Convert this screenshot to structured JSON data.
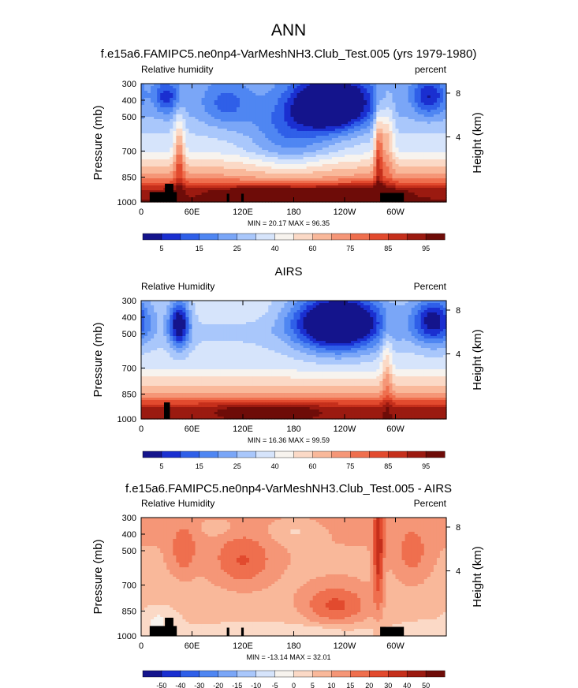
{
  "figure": {
    "main_title": "ANN"
  },
  "palettes": {
    "field": [
      "#14148c",
      "#1a2fd0",
      "#2f5fe8",
      "#4f86f2",
      "#7aa6f7",
      "#a9c7fb",
      "#d6e4fb",
      "#f7f3ee",
      "#fbd9c6",
      "#f9b89a",
      "#f59677",
      "#ef6f4e",
      "#e24a2e",
      "#c52f1b",
      "#9b1a10",
      "#6e0c08"
    ],
    "diff": [
      "#14148c",
      "#1a2fd0",
      "#2f5fe8",
      "#4f86f2",
      "#7aa6f7",
      "#a9c7fb",
      "#d6e4fb",
      "#f7f3ee",
      "#fbd9c6",
      "#f9b89a",
      "#f59677",
      "#ef6f4e",
      "#e24a2e",
      "#c52f1b",
      "#9b1a10",
      "#6e0c08"
    ],
    "land": "#000000"
  },
  "chart_data": [
    {
      "type": "heatmap",
      "title": "f.e15a6.FAMIPC5.ne0np4-VarMeshNH3.Club_Test.005 (yrs 1979-1980)",
      "left_label": "Relative humidity",
      "right_label": "percent",
      "ylabel": "Pressure (mb)",
      "ylabel_right": "Height (km)",
      "x_ticks": [
        "0",
        "60E",
        "120E",
        "180",
        "120W",
        "60W"
      ],
      "y_ticks": [
        "300",
        "400",
        "500",
        "700",
        "850",
        "1000"
      ],
      "y_ticks_right": [
        "8",
        "4"
      ],
      "xlim_lon": [
        0,
        360
      ],
      "ylim_mb": [
        1000,
        300
      ],
      "stats": "MIN =  20.17  MAX =  96.35",
      "colorbar_labels": [
        "5",
        "15",
        "25",
        "40",
        "60",
        "75",
        "85",
        "95"
      ],
      "field": {
        "base": 0.35,
        "profile": [
          [
            300,
            -0.05
          ],
          [
            500,
            -0.02
          ],
          [
            700,
            0.08
          ],
          [
            850,
            0.3
          ],
          [
            930,
            0.55
          ],
          [
            1000,
            0.6
          ]
        ],
        "blobs": [
          {
            "lon": 225,
            "p": 420,
            "slon": 45,
            "sp": 150,
            "amp": -0.55
          },
          {
            "lon": 30,
            "p": 380,
            "slon": 15,
            "sp": 100,
            "amp": -0.22
          },
          {
            "lon": 340,
            "p": 380,
            "slon": 20,
            "sp": 110,
            "amp": -0.25
          },
          {
            "lon": 100,
            "p": 420,
            "slon": 30,
            "sp": 130,
            "amp": -0.15
          },
          {
            "lon": 175,
            "p": 620,
            "slon": 50,
            "sp": 200,
            "amp": -0.18
          },
          {
            "lon": 45,
            "p": 720,
            "slon": 6,
            "sp": 220,
            "amp": 0.25
          },
          {
            "lon": 280,
            "p": 700,
            "slon": 5,
            "sp": 260,
            "amp": 0.3
          },
          {
            "lon": 290,
            "p": 620,
            "slon": 8,
            "sp": 250,
            "amp": 0.2
          },
          {
            "lon": 150,
            "p": 940,
            "slon": 60,
            "sp": 40,
            "amp": 0.15
          },
          {
            "lon": 255,
            "p": 940,
            "slon": 50,
            "sp": 40,
            "amp": 0.15
          }
        ]
      },
      "land": [
        {
          "lon0": 10,
          "lon1": 42,
          "p0": 940,
          "p1": 1000
        },
        {
          "lon0": 28,
          "lon1": 38,
          "p0": 890,
          "p1": 1000
        },
        {
          "lon0": 101,
          "lon1": 104,
          "p0": 950,
          "p1": 1000
        },
        {
          "lon0": 118,
          "lon1": 121,
          "p0": 950,
          "p1": 1000
        },
        {
          "lon0": 282,
          "lon1": 310,
          "p0": 945,
          "p1": 1000
        }
      ]
    },
    {
      "type": "heatmap",
      "title": "AIRS",
      "left_label": "Relative Humidity",
      "right_label": "Percent",
      "ylabel": "Pressure (mb)",
      "ylabel_right": "Height (km)",
      "x_ticks": [
        "0",
        "60E",
        "120E",
        "180",
        "120W",
        "60W"
      ],
      "y_ticks": [
        "300",
        "400",
        "500",
        "700",
        "850",
        "1000"
      ],
      "y_ticks_right": [
        "8",
        "4"
      ],
      "xlim_lon": [
        0,
        360
      ],
      "ylim_mb": [
        1000,
        300
      ],
      "stats": "MIN =  16.36  MAX =  99.59",
      "colorbar_labels": [
        "5",
        "15",
        "25",
        "40",
        "60",
        "75",
        "85",
        "95"
      ],
      "field": {
        "base": 0.33,
        "profile": [
          [
            300,
            0.05
          ],
          [
            500,
            0.03
          ],
          [
            700,
            0.1
          ],
          [
            850,
            0.3
          ],
          [
            930,
            0.55
          ],
          [
            1000,
            0.6
          ]
        ],
        "blobs": [
          {
            "lon": 232,
            "p": 430,
            "slon": 50,
            "sp": 160,
            "amp": -0.6
          },
          {
            "lon": 45,
            "p": 440,
            "slon": 12,
            "sp": 140,
            "amp": -0.4
          },
          {
            "lon": 345,
            "p": 420,
            "slon": 25,
            "sp": 140,
            "amp": -0.35
          },
          {
            "lon": 110,
            "p": 350,
            "slon": 60,
            "sp": 80,
            "amp": 0.05
          },
          {
            "lon": 150,
            "p": 950,
            "slon": 60,
            "sp": 35,
            "amp": 0.12
          },
          {
            "lon": 290,
            "p": 700,
            "slon": 6,
            "sp": 250,
            "amp": 0.15
          }
        ]
      },
      "land": [
        {
          "lon0": 27,
          "lon1": 34,
          "p0": 900,
          "p1": 1000
        }
      ]
    },
    {
      "type": "heatmap",
      "title": "f.e15a6.FAMIPC5.ne0np4-VarMeshNH3.Club_Test.005 - AIRS",
      "left_label": "Relative Humidity",
      "right_label": "Percent",
      "ylabel": "Pressure (mb)",
      "ylabel_right": "Height (km)",
      "x_ticks": [
        "0",
        "60E",
        "120E",
        "180",
        "120W",
        "60W"
      ],
      "y_ticks": [
        "300",
        "400",
        "500",
        "700",
        "850",
        "1000"
      ],
      "y_ticks_right": [
        "8",
        "4"
      ],
      "xlim_lon": [
        0,
        360
      ],
      "ylim_mb": [
        1000,
        300
      ],
      "stats": "MIN = -13.14  MAX =  32.01",
      "colorbar_labels": [
        "-50",
        "-40",
        "-30",
        "-20",
        "-15",
        "-10",
        "-5",
        "0",
        "5",
        "10",
        "15",
        "20",
        "30",
        "40",
        "50"
      ],
      "field": {
        "base": 0.6,
        "profile": [
          [
            300,
            0.05
          ],
          [
            500,
            0.02
          ],
          [
            700,
            0.0
          ],
          [
            850,
            -0.02
          ],
          [
            1000,
            -0.05
          ]
        ],
        "blobs": [
          {
            "lon": 230,
            "p": 820,
            "slon": 40,
            "sp": 120,
            "amp": 0.18
          },
          {
            "lon": 120,
            "p": 560,
            "slon": 35,
            "sp": 150,
            "amp": 0.14
          },
          {
            "lon": 50,
            "p": 500,
            "slon": 15,
            "sp": 140,
            "amp": 0.12
          },
          {
            "lon": 320,
            "p": 520,
            "slon": 20,
            "sp": 160,
            "amp": 0.1
          },
          {
            "lon": 180,
            "p": 380,
            "slon": 30,
            "sp": 80,
            "amp": -0.08
          },
          {
            "lon": 90,
            "p": 360,
            "slon": 20,
            "sp": 60,
            "amp": -0.06
          },
          {
            "lon": 280,
            "p": 500,
            "slon": 6,
            "sp": 300,
            "amp": 0.25
          },
          {
            "lon": 20,
            "p": 900,
            "slon": 20,
            "sp": 80,
            "amp": -0.08
          },
          {
            "lon": 180,
            "p": 960,
            "slon": 80,
            "sp": 30,
            "amp": -0.06
          },
          {
            "lon": 340,
            "p": 960,
            "slon": 25,
            "sp": 40,
            "amp": -0.05
          }
        ]
      },
      "land": [
        {
          "lon0": 10,
          "lon1": 42,
          "p0": 940,
          "p1": 1000
        },
        {
          "lon0": 28,
          "lon1": 38,
          "p0": 890,
          "p1": 1000
        },
        {
          "lon0": 101,
          "lon1": 104,
          "p0": 950,
          "p1": 1000
        },
        {
          "lon0": 118,
          "lon1": 121,
          "p0": 950,
          "p1": 1000
        },
        {
          "lon0": 282,
          "lon1": 310,
          "p0": 945,
          "p1": 1000
        }
      ]
    }
  ]
}
